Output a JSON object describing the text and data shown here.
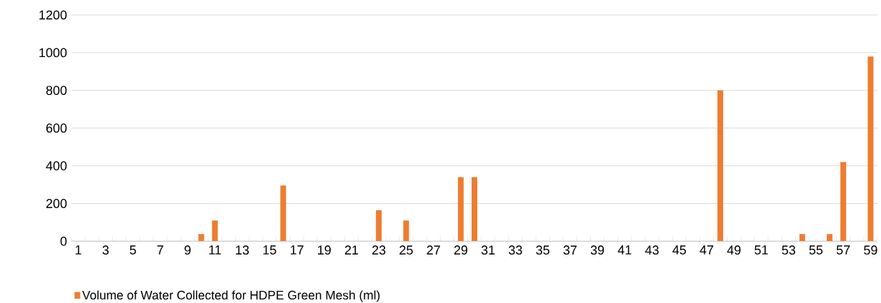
{
  "chart_data": {
    "type": "bar",
    "categories": [
      "1",
      null,
      "3",
      null,
      "5",
      null,
      "7",
      null,
      "9",
      null,
      "11",
      null,
      "13",
      null,
      "15",
      null,
      "17",
      null,
      "19",
      null,
      "21",
      null,
      "23",
      null,
      "25",
      null,
      "27",
      null,
      "29",
      null,
      "31",
      null,
      "33",
      null,
      "35",
      null,
      "37",
      null,
      "39",
      null,
      "41",
      null,
      "43",
      null,
      "45",
      null,
      "47",
      null,
      "49",
      null,
      "51",
      null,
      "53",
      null,
      "55",
      null,
      "57",
      null,
      "59"
    ],
    "series": [
      {
        "name": "Volume of Water Collected for HDPE Green Mesh (ml)",
        "color": "#ed7d31",
        "values": [
          0,
          0,
          0,
          0,
          0,
          0,
          0,
          0,
          0,
          38,
          110,
          0,
          0,
          0,
          0,
          295,
          0,
          0,
          0,
          0,
          0,
          0,
          165,
          0,
          110,
          0,
          0,
          0,
          340,
          340,
          0,
          0,
          0,
          0,
          0,
          0,
          0,
          0,
          0,
          0,
          0,
          0,
          0,
          0,
          0,
          0,
          0,
          800,
          0,
          0,
          0,
          0,
          0,
          38,
          0,
          38,
          420,
          0,
          980
        ]
      }
    ],
    "ylim": [
      0,
      1200
    ],
    "yticks": [
      0,
      200,
      400,
      600,
      800,
      1000,
      1200
    ],
    "grid": "y",
    "legend": "bottom left"
  }
}
